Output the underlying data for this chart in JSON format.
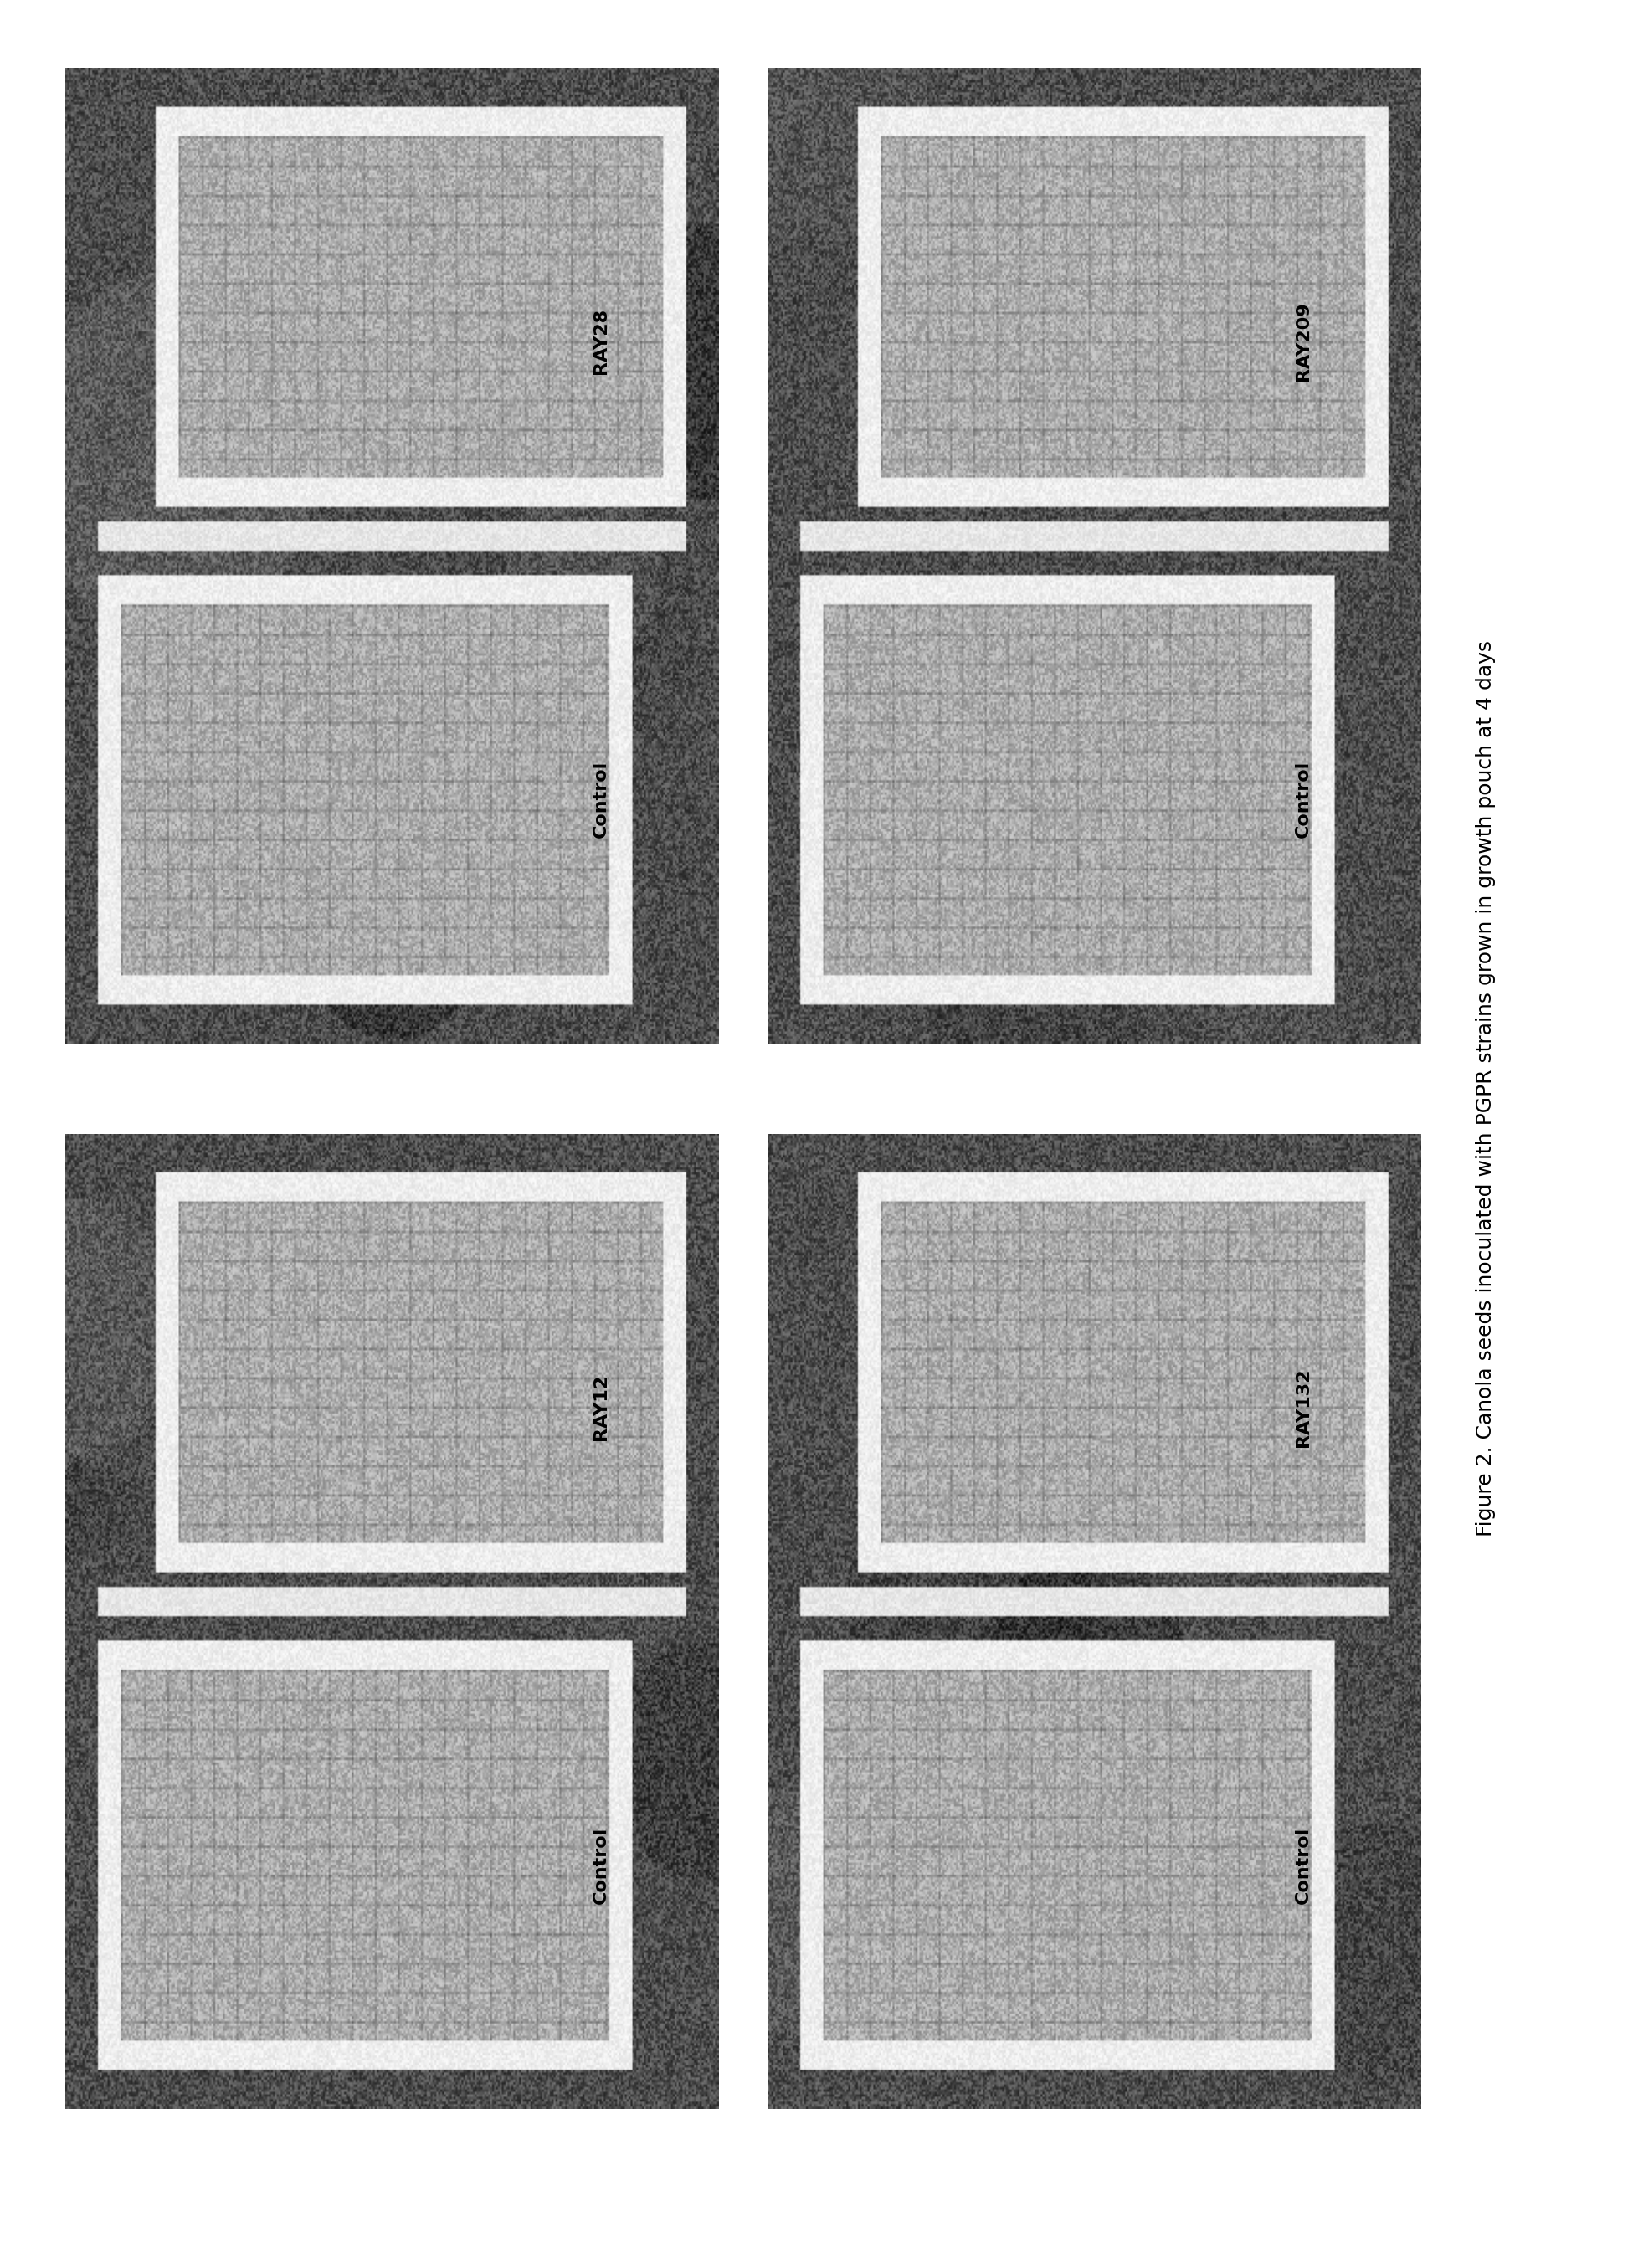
{
  "figure_caption": "Figure 2. Canola seeds inoculated with PGPR strains grown in growth pouch at 4 days",
  "background_color": "#ffffff",
  "panel_labels": [
    "RAY28",
    "RAY209",
    "RAY12",
    "RAY132"
  ],
  "control_label": "Control",
  "fig_width": 19.51,
  "fig_height": 27.1,
  "caption_fontsize": 18,
  "label_fontsize": 16,
  "panel_bg_dark": "#3a3a3a",
  "panel_inner_light": "#d0d0d0",
  "panel_border_white": "#ffffff"
}
